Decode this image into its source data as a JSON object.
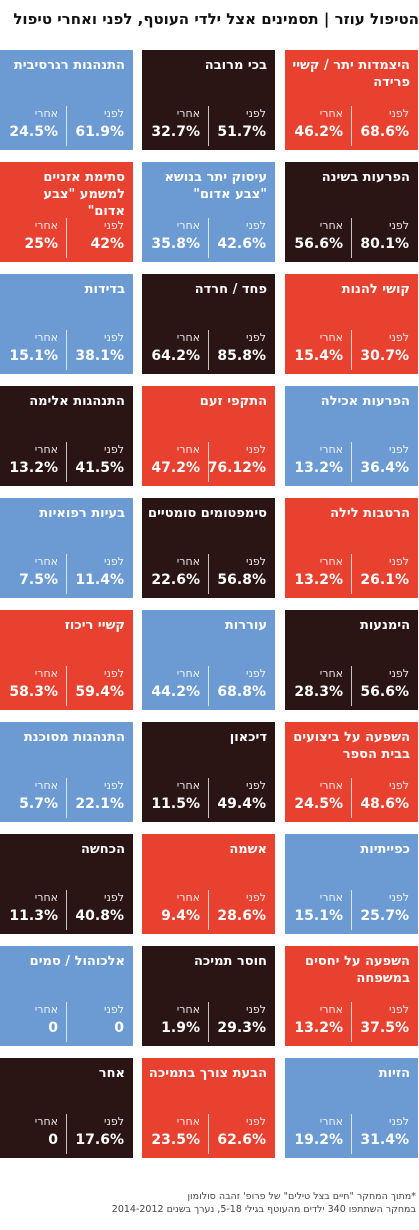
{
  "title": "הטיפול עוזר | תסמינים אצל ילדי העוטף, לפני ואחרי טיפול",
  "labels": {
    "before": "לפני",
    "after": "אחרי"
  },
  "colors": {
    "red": "#e8412f",
    "dark": "#2a1414",
    "blue": "#6b9bd2"
  },
  "chart_data": {
    "type": "table",
    "columns": [
      "לפני",
      "אחרי"
    ],
    "rows": [
      {
        "name": "היצמדות יתר / קשיי פרידה",
        "before": "68.6%",
        "after": "46.2%",
        "color": "red"
      },
      {
        "name": "בכי מרובה",
        "before": "51.7%",
        "after": "32.7%",
        "color": "dark"
      },
      {
        "name": "התנהגות רגרסיבית",
        "before": "61.9%",
        "after": "24.5%",
        "color": "blue"
      },
      {
        "name": "הפרעות בשינה",
        "before": "80.1%",
        "after": "56.6%",
        "color": "dark"
      },
      {
        "name": "עיסוק יתר בנושא \"צבע אדום\"",
        "before": "42.6%",
        "after": "35.8%",
        "color": "blue"
      },
      {
        "name": "סתימת אזניים למשמע \"צבע אדום\"",
        "before": "42%",
        "after": "25%",
        "color": "red"
      },
      {
        "name": "קושי להנות",
        "before": "30.7%",
        "after": "15.4%",
        "color": "red"
      },
      {
        "name": "פחד / חרדה",
        "before": "85.8%",
        "after": "64.2%",
        "color": "dark"
      },
      {
        "name": "בדידות",
        "before": "38.1%",
        "after": "15.1%",
        "color": "blue"
      },
      {
        "name": "הפרעות אכילה",
        "before": "36.4%",
        "after": "13.2%",
        "color": "blue"
      },
      {
        "name": "התקפי זעם",
        "before": "76.12%",
        "after": "47.2%",
        "color": "red"
      },
      {
        "name": "התנהגות אלימה",
        "before": "41.5%",
        "after": "13.2%",
        "color": "dark"
      },
      {
        "name": "הרטבות לילה",
        "before": "26.1%",
        "after": "13.2%",
        "color": "red"
      },
      {
        "name": "סימפטומים סומטיים",
        "before": "56.8%",
        "after": "22.6%",
        "color": "dark"
      },
      {
        "name": "בעיות רפואיות",
        "before": "11.4%",
        "after": "7.5%",
        "color": "blue"
      },
      {
        "name": "הימנעות",
        "before": "56.6%",
        "after": "28.3%",
        "color": "dark"
      },
      {
        "name": "עוררות",
        "before": "68.8%",
        "after": "44.2%",
        "color": "blue"
      },
      {
        "name": "קשיי ריכוז",
        "before": "59.4%",
        "after": "58.3%",
        "color": "red"
      },
      {
        "name": "השפעה על ביצועים בבית הספר",
        "before": "48.6%",
        "after": "24.5%",
        "color": "red"
      },
      {
        "name": "דיכאון",
        "before": "49.4%",
        "after": "11.5%",
        "color": "dark"
      },
      {
        "name": "התנהגות מסוכנת",
        "before": "22.1%",
        "after": "5.7%",
        "color": "blue"
      },
      {
        "name": "כפייתיות",
        "before": "25.7%",
        "after": "15.1%",
        "color": "blue"
      },
      {
        "name": "אשמה",
        "before": "28.6%",
        "after": "9.4%",
        "color": "red"
      },
      {
        "name": "הכחשה",
        "before": "40.8%",
        "after": "11.3%",
        "color": "dark"
      },
      {
        "name": "השפעה על יחסים במשפחה",
        "before": "37.5%",
        "after": "13.2%",
        "color": "red"
      },
      {
        "name": "חוסר תמיכה",
        "before": "29.3%",
        "after": "1.9%",
        "color": "dark"
      },
      {
        "name": "אלכוהול / סמים",
        "before": "0",
        "after": "0",
        "color": "blue"
      },
      {
        "name": "הזיות",
        "before": "31.4%",
        "after": "19.2%",
        "color": "blue"
      },
      {
        "name": "הבעת צורך בתמיכה",
        "before": "62.6%",
        "after": "23.5%",
        "color": "red"
      },
      {
        "name": "אחר",
        "before": "17.6%",
        "after": "0",
        "color": "dark"
      }
    ]
  },
  "footnote": {
    "line1": "*מתוך המחקר \"חיים בצל טילים\" של פרופ' זהבה סולומון",
    "line2": "במחקר השתתפו 340 ילדים מהעוטף בגילי 5-18, נערך בשנים 2014-2012"
  }
}
